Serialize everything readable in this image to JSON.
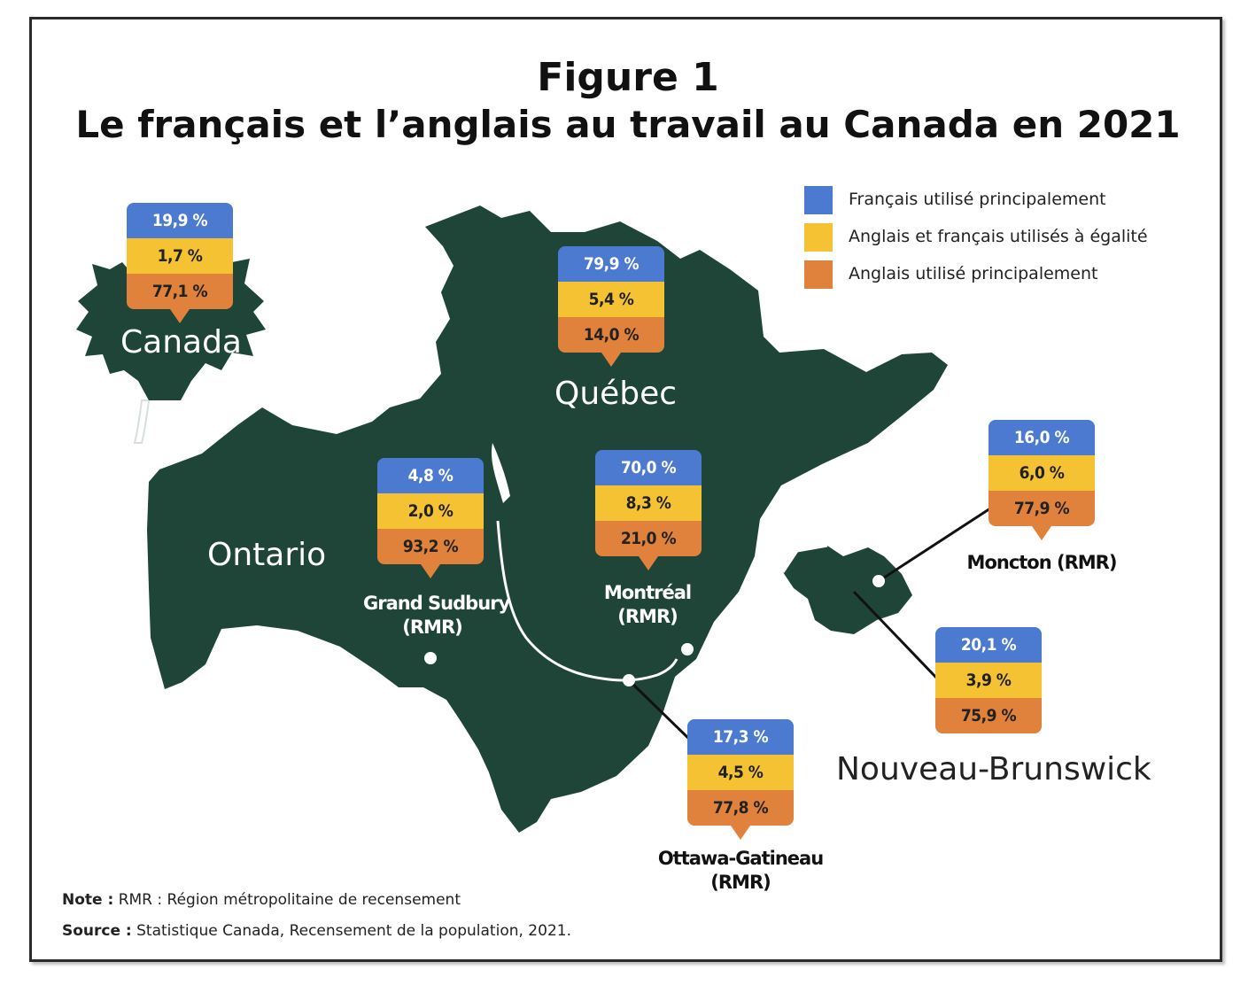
{
  "figure": {
    "number": "Figure 1",
    "title": "Le français et l’anglais au travail au Canada en 2021"
  },
  "colors": {
    "map_fill": "#1e4538",
    "francais": "#4c7ad0",
    "egalite": "#f4c233",
    "anglais": "#e0823c",
    "border_line": "#ffffff",
    "leader_line": "#111111"
  },
  "legend": [
    {
      "label": "Français utilisé principalement",
      "color_key": "francais"
    },
    {
      "label": "Anglais et français utilisés à égalité",
      "color_key": "egalite"
    },
    {
      "label": "Anglais utilisé principalement",
      "color_key": "anglais"
    }
  ],
  "regions": {
    "canada": "Canada",
    "quebec": "Québec",
    "ontario": "Ontario",
    "nb": "Nouveau-Brunswick"
  },
  "places": [
    {
      "id": "canada",
      "label_lines": [],
      "francais": "19,9 %",
      "egalite": "1,7 %",
      "anglais": "77,1 %",
      "francais_pct": 19.9,
      "egalite_pct": 1.7,
      "anglais_pct": 77.1
    },
    {
      "id": "quebec",
      "label_lines": [],
      "francais": "79,9 %",
      "egalite": "5,4 %",
      "anglais": "14,0 %",
      "francais_pct": 79.9,
      "egalite_pct": 5.4,
      "anglais_pct": 14.0
    },
    {
      "id": "sudbury",
      "label_lines": [
        "Grand Sudbury",
        "(RMR)"
      ],
      "francais": "4,8 %",
      "egalite": "2,0 %",
      "anglais": "93,2 %",
      "francais_pct": 4.8,
      "egalite_pct": 2.0,
      "anglais_pct": 93.2
    },
    {
      "id": "montreal",
      "label_lines": [
        "Montréal",
        "(RMR)"
      ],
      "francais": "70,0 %",
      "egalite": "8,3 %",
      "anglais": "21,0 %",
      "francais_pct": 70.0,
      "egalite_pct": 8.3,
      "anglais_pct": 21.0
    },
    {
      "id": "moncton",
      "label_lines": [
        "Moncton (RMR)"
      ],
      "francais": "16,0 %",
      "egalite": "6,0 %",
      "anglais": "77,9 %",
      "francais_pct": 16.0,
      "egalite_pct": 6.0,
      "anglais_pct": 77.9
    },
    {
      "id": "nb",
      "label_lines": [],
      "francais": "20,1 %",
      "egalite": "3,9 %",
      "anglais": "75,9 %",
      "francais_pct": 20.1,
      "egalite_pct": 3.9,
      "anglais_pct": 75.9
    },
    {
      "id": "ottawa",
      "label_lines": [
        "Ottawa-Gatineau",
        "(RMR)"
      ],
      "francais": "17,3 %",
      "egalite": "4,5 %",
      "anglais": "77,8 %",
      "francais_pct": 17.3,
      "egalite_pct": 4.5,
      "anglais_pct": 77.8
    }
  ],
  "notes": {
    "note_label": "Note :",
    "note_text": "RMR : Région métropolitaine de recensement",
    "source_label": "Source :",
    "source_text": "Statistique Canada, Recensement de la population, 2021."
  }
}
